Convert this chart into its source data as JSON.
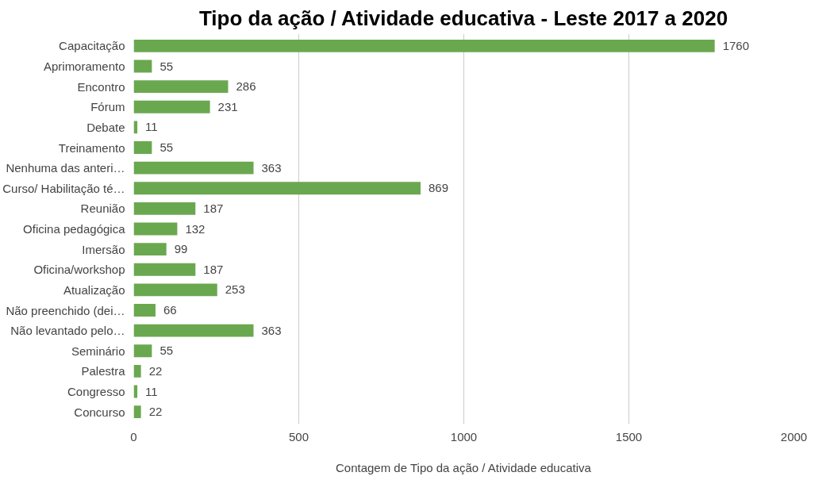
{
  "chart_data": {
    "type": "bar",
    "orientation": "horizontal",
    "title": "Tipo da ação / Atividade educativa - Leste 2017 a 2020",
    "xlabel": "Contagem de Tipo da ação / Atividade educativa",
    "categories": [
      "Capacitação",
      "Aprimoramento",
      "Encontro",
      "Fórum",
      "Debate",
      "Treinamento",
      "Nenhuma das anteri…",
      "Curso/ Habilitação té…",
      "Reunião",
      "Oficina pedagógica",
      "Imersão",
      "Oficina/workshop",
      "Atualização",
      "Não preenchido (dei…",
      "Não levantado pelo…",
      "Seminário",
      "Palestra",
      "Congresso",
      "Concurso"
    ],
    "values": [
      1760,
      55,
      286,
      231,
      11,
      55,
      363,
      869,
      187,
      132,
      99,
      187,
      253,
      66,
      363,
      55,
      22,
      11,
      22
    ],
    "color": "#6aa84f",
    "xlim": [
      0,
      2000
    ],
    "xticks": [
      0,
      500,
      1000,
      1500,
      2000
    ],
    "grid": "x",
    "data_labels": true
  }
}
